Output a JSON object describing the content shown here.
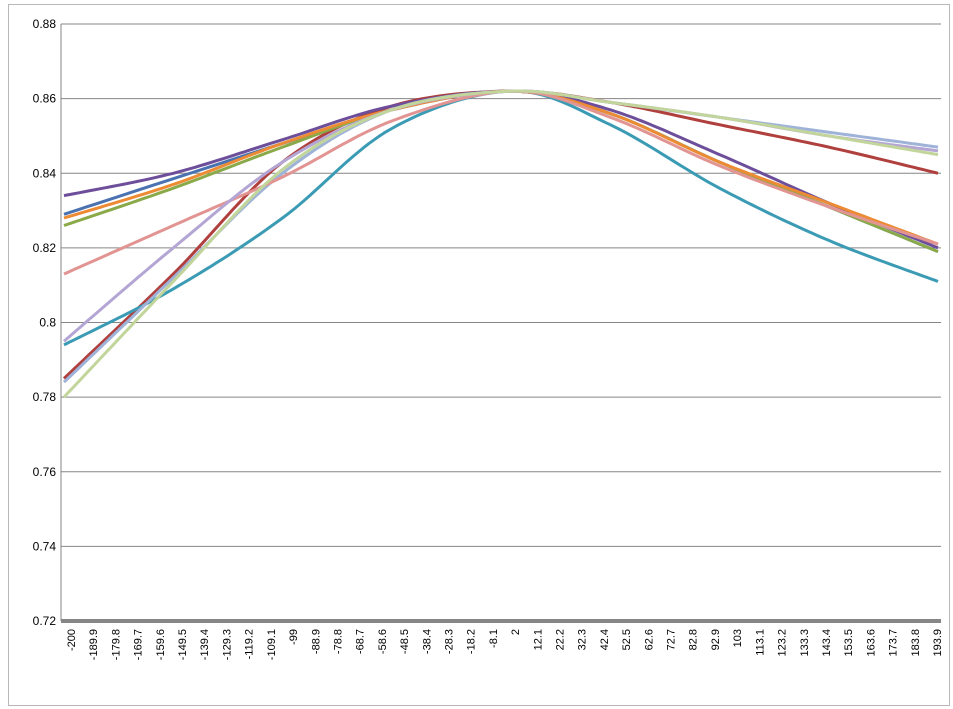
{
  "chart_data": {
    "type": "line",
    "title": "",
    "xlabel": "",
    "ylabel": "",
    "ylim": [
      0.72,
      0.88
    ],
    "yticks": [
      "0.72",
      "0.74",
      "0.76",
      "0.78",
      "0.8",
      "0.82",
      "0.84",
      "0.86",
      "0.88"
    ],
    "grid": true,
    "legend": "none",
    "x_tick_labels": [
      "-200",
      "-189.9",
      "-179.8",
      "-169.7",
      "-159.6",
      "-149.5",
      "-139.4",
      "-129.3",
      "-119.2",
      "-109.1",
      "-99",
      "-88.9",
      "-78.8",
      "-68.7",
      "-58.6",
      "-48.5",
      "-38.4",
      "-28.3",
      "-18.2",
      "-8.1",
      "2",
      "12.1",
      "22.2",
      "32.3",
      "42.4",
      "52.5",
      "62.6",
      "72.7",
      "82.8",
      "92.9",
      "103",
      "113.1",
      "123.2",
      "133.3",
      "143.4",
      "153.5",
      "163.6",
      "173.7",
      "183.8",
      "193.9"
    ],
    "x_range": [
      -200,
      200
    ],
    "peak": {
      "x": 5,
      "y": 0.862
    },
    "series": [
      {
        "color": "#4a72b0",
        "values_at_x": {
          "-200": 0.829,
          "-100": 0.848,
          "-50": 0.857,
          "5": 0.862,
          "50": 0.856,
          "100": 0.843,
          "150": 0.831,
          "200": 0.819
        }
      },
      {
        "color": "#b0403d",
        "values_at_x": {
          "-200": 0.785,
          "-150": 0.813,
          "-100": 0.843,
          "-50": 0.858,
          "5": 0.862,
          "50": 0.859,
          "100": 0.853,
          "150": 0.847,
          "200": 0.84
        }
      },
      {
        "color": "#8aaa4a",
        "values_at_x": {
          "-200": 0.826,
          "-150": 0.836,
          "-100": 0.847,
          "-50": 0.857,
          "5": 0.862,
          "50": 0.856,
          "100": 0.843,
          "150": 0.831,
          "200": 0.819
        }
      },
      {
        "color": "#6d4e9a",
        "values_at_x": {
          "-200": 0.834,
          "-150": 0.84,
          "-100": 0.849,
          "-50": 0.858,
          "5": 0.862,
          "50": 0.857,
          "100": 0.845,
          "150": 0.832,
          "200": 0.82
        }
      },
      {
        "color": "#3b9bb4",
        "values_at_x": {
          "-200": 0.794,
          "-150": 0.809,
          "-100": 0.828,
          "-50": 0.852,
          "5": 0.862,
          "50": 0.853,
          "100": 0.836,
          "150": 0.822,
          "200": 0.811
        }
      },
      {
        "color": "#ed8b34",
        "values_at_x": {
          "-200": 0.828,
          "-150": 0.837,
          "-100": 0.848,
          "-50": 0.857,
          "5": 0.862,
          "50": 0.856,
          "100": 0.843,
          "150": 0.832,
          "200": 0.821
        }
      },
      {
        "color": "#9fb3d9",
        "values_at_x": {
          "-200": 0.784,
          "-150": 0.812,
          "-100": 0.84,
          "-50": 0.857,
          "5": 0.862,
          "50": 0.859,
          "100": 0.855,
          "150": 0.851,
          "200": 0.847
        }
      },
      {
        "color": "#e29492",
        "values_at_x": {
          "-200": 0.813,
          "-150": 0.826,
          "-100": 0.839,
          "-50": 0.854,
          "5": 0.862,
          "50": 0.855,
          "100": 0.842,
          "150": 0.831,
          "200": 0.821
        }
      },
      {
        "color": "#b4a6d4",
        "values_at_x": {
          "-200": 0.795,
          "-150": 0.82,
          "-100": 0.843,
          "-50": 0.857,
          "5": 0.862,
          "50": 0.859,
          "100": 0.855,
          "150": 0.85,
          "200": 0.846
        }
      },
      {
        "color": "#c2d59b",
        "values_at_x": {
          "-200": 0.78,
          "-150": 0.811,
          "-100": 0.841,
          "-50": 0.857,
          "5": 0.862,
          "50": 0.859,
          "100": 0.855,
          "150": 0.85,
          "200": 0.845
        }
      }
    ]
  }
}
